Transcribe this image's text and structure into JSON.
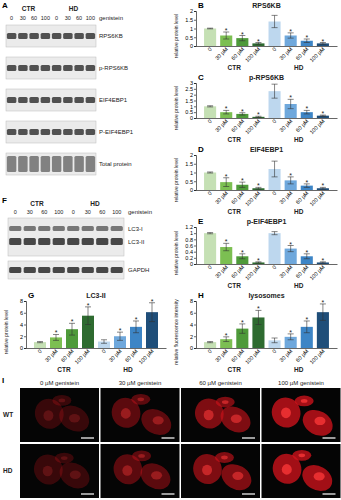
{
  "chart_data": [
    {
      "type": "bar",
      "title": "RPS6KB",
      "ylabel": "relative protein level",
      "categories": [
        "0",
        "30 µM",
        "60 µM",
        "100 µM"
      ],
      "series": [
        {
          "name": "CTR",
          "colors": [
            "#c5e0b4",
            "#7cbf52",
            "#4e9a3a",
            "#2e6b30"
          ],
          "values": [
            1.0,
            0.6,
            0.45,
            0.15
          ],
          "errors": [
            0.02,
            0.2,
            0.15,
            0.05
          ],
          "annotations": [
            {
              "index": 1,
              "text": "*"
            },
            {
              "index": 2,
              "text": "*"
            },
            {
              "index": 3,
              "text": "*"
            }
          ]
        },
        {
          "name": "HD",
          "colors": [
            "#bdd7ee",
            "#6fa8dc",
            "#3d85c6",
            "#1f4e79"
          ],
          "values": [
            1.4,
            0.6,
            0.3,
            0.15
          ],
          "errors": [
            0.35,
            0.15,
            0.1,
            0.05
          ],
          "annotations": [
            {
              "index": 1,
              "text": "*"
            },
            {
              "index": 2,
              "text": "*"
            },
            {
              "index": 3,
              "text": "*"
            }
          ]
        }
      ],
      "ylim": [
        0,
        2
      ],
      "yticks": [
        0,
        0.5,
        1,
        1.5,
        2
      ]
    },
    {
      "type": "bar",
      "title": "p-RPS6KB",
      "ylabel": "relative protein level",
      "categories": [
        "0",
        "30 µM",
        "60 µM",
        "100 µM"
      ],
      "series": [
        {
          "name": "CTR",
          "colors": [
            "#c5e0b4",
            "#7cbf52",
            "#4e9a3a",
            "#2e6b30"
          ],
          "values": [
            1.0,
            0.5,
            0.35,
            0.1
          ],
          "errors": [
            0.05,
            0.15,
            0.1,
            0.05
          ],
          "annotations": [
            {
              "index": 1,
              "text": "*"
            },
            {
              "index": 2,
              "text": "*"
            },
            {
              "index": 3,
              "text": "*"
            }
          ]
        },
        {
          "name": "HD",
          "colors": [
            "#bdd7ee",
            "#6fa8dc",
            "#3d85c6",
            "#1f4e79"
          ],
          "values": [
            2.3,
            1.2,
            0.5,
            0.2
          ],
          "errors": [
            0.6,
            0.4,
            0.15,
            0.05
          ],
          "annotations": [
            {
              "index": 1,
              "text": "*"
            },
            {
              "index": 2,
              "text": "*"
            },
            {
              "index": 3,
              "text": "*"
            }
          ]
        }
      ],
      "ylim": [
        0,
        3
      ],
      "yticks": [
        0,
        0.5,
        1,
        1.5,
        2,
        2.5,
        3
      ]
    },
    {
      "type": "bar",
      "title": "EIF4EBP1",
      "ylabel": "relative protein level",
      "categories": [
        "0",
        "30 µM",
        "60 µM",
        "100 µM"
      ],
      "series": [
        {
          "name": "CTR",
          "colors": [
            "#c5e0b4",
            "#7cbf52",
            "#4e9a3a",
            "#2e6b30"
          ],
          "values": [
            1.0,
            0.45,
            0.3,
            0.1
          ],
          "errors": [
            0.03,
            0.25,
            0.15,
            0.05
          ],
          "annotations": [
            {
              "index": 1,
              "text": "*"
            },
            {
              "index": 2,
              "text": "*"
            },
            {
              "index": 3,
              "text": "*"
            }
          ]
        },
        {
          "name": "HD",
          "colors": [
            "#bdd7ee",
            "#6fa8dc",
            "#3d85c6",
            "#1f4e79"
          ],
          "values": [
            1.2,
            0.55,
            0.25,
            0.1
          ],
          "errors": [
            0.45,
            0.2,
            0.1,
            0.05
          ],
          "annotations": [
            {
              "index": 1,
              "text": "*"
            },
            {
              "index": 2,
              "text": "*"
            },
            {
              "index": 3,
              "text": "*"
            }
          ]
        }
      ],
      "ylim": [
        0,
        2
      ],
      "yticks": [
        0,
        0.5,
        1,
        1.5,
        2
      ]
    },
    {
      "type": "bar",
      "title": "p-EIF4EBP1",
      "ylabel": "relative protein level",
      "categories": [
        "0",
        "30 µM",
        "60 µM",
        "100 µM"
      ],
      "series": [
        {
          "name": "CTR",
          "colors": [
            "#c5e0b4",
            "#7cbf52",
            "#4e9a3a",
            "#2e6b30"
          ],
          "values": [
            1.0,
            0.55,
            0.25,
            0.05
          ],
          "errors": [
            0.02,
            0.12,
            0.08,
            0.02
          ],
          "annotations": [
            {
              "index": 1,
              "text": "*"
            },
            {
              "index": 2,
              "text": "*"
            },
            {
              "index": 3,
              "text": "*"
            }
          ]
        },
        {
          "name": "HD",
          "colors": [
            "#bdd7ee",
            "#6fa8dc",
            "#3d85c6",
            "#1f4e79"
          ],
          "values": [
            1.0,
            0.5,
            0.25,
            0.05
          ],
          "errors": [
            0.05,
            0.1,
            0.08,
            0.02
          ],
          "annotations": [
            {
              "index": 1,
              "text": "*"
            },
            {
              "index": 2,
              "text": "*"
            },
            {
              "index": 3,
              "text": "*"
            }
          ]
        }
      ],
      "ylim": [
        0,
        1.2
      ],
      "yticks": [
        0,
        0.2,
        0.4,
        0.6,
        0.8,
        1,
        1.2
      ]
    },
    {
      "type": "bar",
      "title": "LC3-II",
      "ylabel": "relative protein level",
      "categories": [
        "0",
        "30 µM",
        "60 µM",
        "100 µM"
      ],
      "series": [
        {
          "name": "CTR",
          "colors": [
            "#c5e0b4",
            "#7cbf52",
            "#4e9a3a",
            "#2e6b30"
          ],
          "values": [
            1.0,
            1.8,
            3.2,
            5.5
          ],
          "errors": [
            0.1,
            0.5,
            1.0,
            1.5
          ],
          "annotations": [
            {
              "index": 1,
              "text": "*"
            },
            {
              "index": 2,
              "text": "*"
            },
            {
              "index": 3,
              "text": "*"
            }
          ]
        },
        {
          "name": "HD",
          "colors": [
            "#bdd7ee",
            "#6fa8dc",
            "#3d85c6",
            "#1f4e79"
          ],
          "values": [
            1.1,
            2.0,
            3.6,
            6.1
          ],
          "errors": [
            0.3,
            0.7,
            1.0,
            1.6
          ],
          "annotations": [
            {
              "index": 1,
              "text": "*"
            },
            {
              "index": 2,
              "text": "*"
            },
            {
              "index": 3,
              "text": "*"
            }
          ]
        }
      ],
      "ylim": [
        0,
        8
      ],
      "yticks": [
        0,
        2,
        4,
        6,
        8
      ]
    },
    {
      "type": "bar",
      "title": "lysosomes",
      "ylabel": "relative fluorescence intensity",
      "categories": [
        "0",
        "30 µM",
        "60 µM",
        "100 µM"
      ],
      "series": [
        {
          "name": "CTR",
          "colors": [
            "#c5e0b4",
            "#7cbf52",
            "#4e9a3a",
            "#2e6b30"
          ],
          "values": [
            1.0,
            1.5,
            3.3,
            5.2
          ],
          "errors": [
            0.1,
            0.4,
            0.8,
            1.2
          ],
          "annotations": [
            {
              "index": 1,
              "text": "*"
            },
            {
              "index": 2,
              "text": "*"
            },
            {
              "index": 3,
              "text": "*"
            }
          ]
        },
        {
          "name": "HD",
          "colors": [
            "#bdd7ee",
            "#6fa8dc",
            "#3d85c6",
            "#1f4e79"
          ],
          "values": [
            1.3,
            1.9,
            3.6,
            6.1
          ],
          "errors": [
            0.4,
            0.5,
            1.0,
            1.4
          ],
          "annotations": [
            {
              "index": 1,
              "text": "*"
            },
            {
              "index": 2,
              "text": "*"
            },
            {
              "index": 3,
              "text": "*"
            }
          ]
        }
      ],
      "ylim": [
        0,
        8
      ],
      "yticks": [
        0,
        2,
        4,
        6,
        8
      ]
    }
  ],
  "panels": [
    "A",
    "B",
    "C",
    "D",
    "E",
    "F",
    "G",
    "H",
    "I"
  ],
  "blots": [
    {
      "groups": [
        "CTR",
        "HD"
      ],
      "treatment": "genistein",
      "lanes": [
        "0",
        "30",
        "60",
        "100"
      ],
      "rows": [
        "RPS6KB",
        "p-RPS6KB",
        "EIF4EBP1",
        "P-EIF4EBP1",
        "Total protein"
      ]
    },
    {
      "groups": [
        "CTR",
        "HD"
      ],
      "treatment": "genistein",
      "lanes": [
        "0",
        "30",
        "60",
        "100"
      ],
      "rows": [
        "LC3-I",
        "LC3-II",
        "GAPDH"
      ]
    }
  ],
  "micrographs": {
    "columns": [
      "0 µM genistein",
      "30 µM genistein",
      "60 µM genistein",
      "100 µM genistein"
    ],
    "rows": [
      "WT",
      "HD"
    ]
  }
}
